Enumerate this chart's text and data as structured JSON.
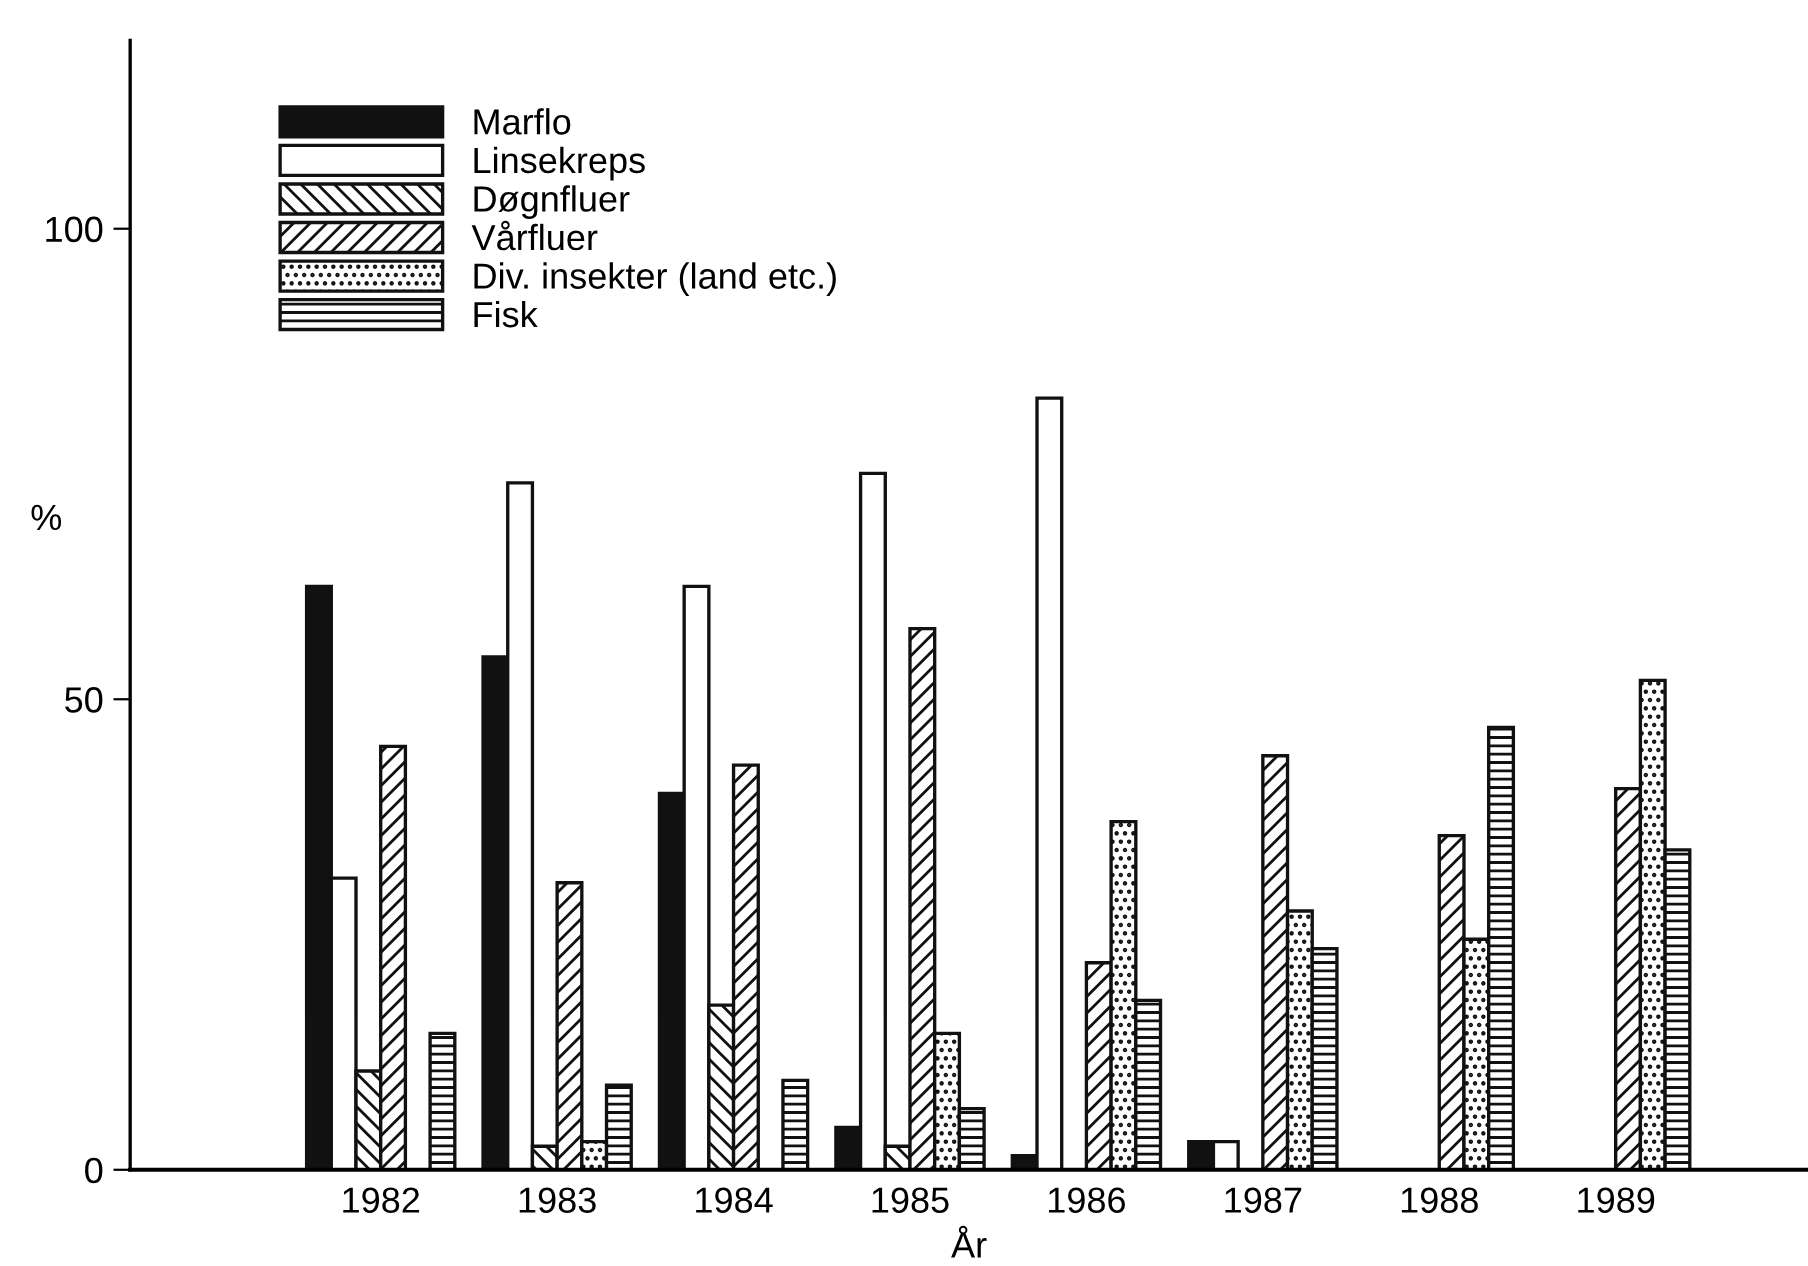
{
  "chart_data": {
    "type": "bar",
    "xlabel": "År",
    "ylabel": "%",
    "categories": [
      "1982",
      "1983",
      "1984",
      "1985",
      "1986",
      "1987",
      "1988",
      "1989"
    ],
    "series": [
      {
        "name": "Marflo",
        "color": "#111111",
        "values": [
          62,
          54.5,
          40,
          4.5,
          1.5,
          3,
          null,
          null
        ]
      },
      {
        "name": "Linsekreps",
        "color": "#ffffff",
        "values": [
          31,
          73,
          62,
          74,
          82,
          3,
          null,
          null
        ]
      },
      {
        "name": "Døgnfluer",
        "color": "#111111",
        "values": [
          10.5,
          2.5,
          17.5,
          2.5,
          null,
          null,
          null,
          null
        ]
      },
      {
        "name": "Vårfluer",
        "color": "#111111",
        "values": [
          45,
          30.5,
          43,
          57.5,
          22,
          44,
          35.5,
          40.5
        ]
      },
      {
        "name": "Div. insekter (land etc.)",
        "color": "#111111",
        "values": [
          null,
          3,
          null,
          14.5,
          37,
          27.5,
          24.5,
          52
        ]
      },
      {
        "name": "Fisk",
        "color": "#111111",
        "values": [
          14.5,
          9,
          9.5,
          6.5,
          18,
          23.5,
          47,
          34
        ]
      }
    ],
    "ylim": [
      0,
      120
    ],
    "yticks": [
      0,
      50,
      100
    ],
    "grid": false,
    "legend": "top left"
  }
}
